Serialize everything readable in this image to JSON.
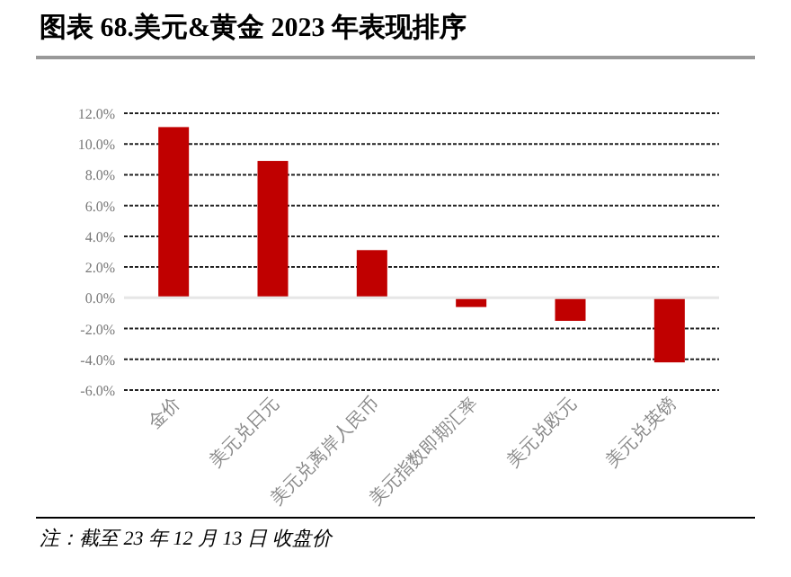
{
  "chart_data": {
    "type": "bar",
    "title": "图表 68.美元&黄金  2023 年表现排序",
    "categories": [
      "金价",
      "美元兑日元",
      "美元兑离岸人民币",
      "美元指数即期汇率",
      "美元兑欧元",
      "美元兑英镑"
    ],
    "values": [
      11.1,
      8.9,
      3.1,
      -0.6,
      -1.5,
      -4.2
    ],
    "color": "#c00000",
    "ylim": [
      -6,
      12
    ],
    "yticks": [
      {
        "value": -6,
        "label": "-6.0%"
      },
      {
        "value": -4,
        "label": "-4.0%"
      },
      {
        "value": -2,
        "label": "-2.0%"
      },
      {
        "value": 0,
        "label": "0.0%"
      },
      {
        "value": 2,
        "label": "2.0%"
      },
      {
        "value": 4,
        "label": "4.0%"
      },
      {
        "value": 6,
        "label": "6.0%"
      },
      {
        "value": 8,
        "label": "8.0%"
      },
      {
        "value": 10,
        "label": "10.0%"
      },
      {
        "value": 12,
        "label": "12.0%"
      }
    ],
    "grid": "y",
    "annotations": [
      "注：截至 23 年 12 月 13 日 收盘价"
    ]
  }
}
